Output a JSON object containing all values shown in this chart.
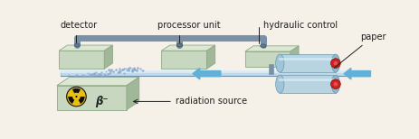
{
  "bg_color": "#f5f0e8",
  "label_detector": "detector",
  "label_processor": "processor unit",
  "label_hydraulic": "hydraulic control",
  "label_paper": "paper",
  "label_radiation": "radiation source",
  "label_beta": "β⁻",
  "box_face": "#c8d8c0",
  "box_top": "#dce8d4",
  "box_right": "#a0b898",
  "box_edge": "#90a888",
  "pipe_color": "#7890a8",
  "pipe_flange": "#607888",
  "roller_body": "#b8d4e0",
  "roller_end": "#90b8cc",
  "roller_edge": "#6898b0",
  "roller_red": "#cc2020",
  "paper_color": "#c0d8e8",
  "paper_edge": "#90b0c8",
  "arrow_color": "#60b0d8",
  "dot_color": "#88aad0",
  "haz_yellow": "#e8c010",
  "haz_black": "#101010",
  "text_color": "#202020",
  "fs": 7.0,
  "fs_beta": 8.5
}
